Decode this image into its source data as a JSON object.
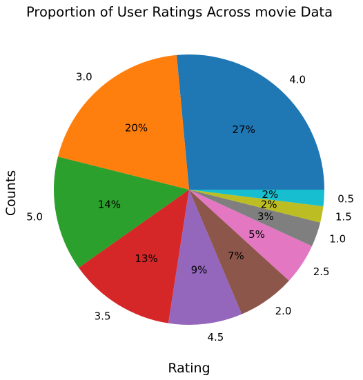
{
  "chart_data": {
    "type": "pie",
    "title": "Proportion of User Ratings Across movie Data",
    "xlabel": "Rating",
    "ylabel": "Counts",
    "legend": "none",
    "start_angle_deg": 0,
    "direction": "counterclockwise",
    "categories": [
      "4.0",
      "3.0",
      "5.0",
      "3.5",
      "4.5",
      "2.0",
      "2.5",
      "1.0",
      "1.5",
      "0.5"
    ],
    "values": [
      27,
      20,
      14,
      13,
      9,
      7,
      5,
      3,
      2,
      2
    ],
    "percent_labels": [
      "27%",
      "20%",
      "14%",
      "13%",
      "9%",
      "7%",
      "5%",
      "3%",
      "2%",
      "2%"
    ],
    "colors": [
      "#1f77b4",
      "#ff7f0e",
      "#2ca02c",
      "#d62728",
      "#9467bd",
      "#8c564b",
      "#e377c2",
      "#7f7f7f",
      "#bcbd22",
      "#17becf"
    ]
  }
}
